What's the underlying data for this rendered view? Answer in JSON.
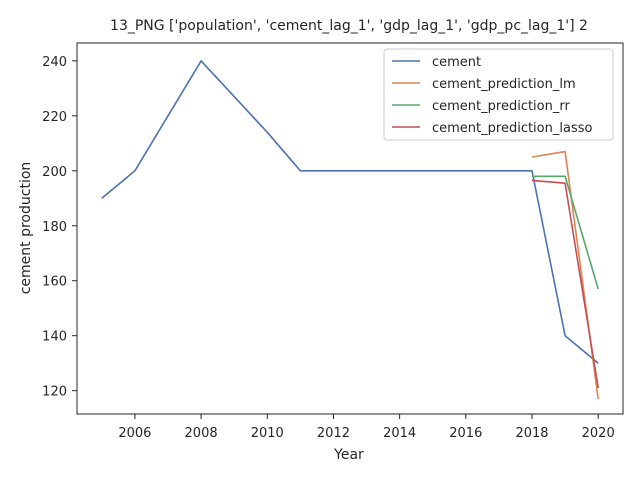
{
  "chart_data": {
    "type": "line",
    "title": "13_PNG ['population', 'cement_lag_1', 'gdp_lag_1', 'gdp_pc_lag_1'] 2",
    "xlabel": "Year",
    "ylabel": "cement production",
    "xlim": [
      2004.25,
      2020.75
    ],
    "ylim": [
      111.5,
      246.5
    ],
    "xticks": [
      2006,
      2008,
      2010,
      2012,
      2014,
      2016,
      2018,
      2020
    ],
    "yticks": [
      120,
      140,
      160,
      180,
      200,
      220,
      240
    ],
    "grid": false,
    "legend_position": "top-right",
    "series": [
      {
        "name": "cement",
        "color": "#4c72b0",
        "x": [
          2005,
          2006,
          2008,
          2009,
          2010,
          2011,
          2012,
          2013,
          2014,
          2015,
          2016,
          2017,
          2018,
          2019,
          2020
        ],
        "y": [
          190,
          200,
          240,
          227,
          214,
          200,
          200,
          200,
          200,
          200,
          200,
          200,
          200,
          140,
          130
        ]
      },
      {
        "name": "cement_prediction_lm",
        "color": "#dd8452",
        "x": [
          2018,
          2019,
          2020
        ],
        "y": [
          205,
          207,
          117
        ]
      },
      {
        "name": "cement_prediction_rr",
        "color": "#55a868",
        "x": [
          2018,
          2019,
          2020
        ],
        "y": [
          198,
          198,
          157
        ]
      },
      {
        "name": "cement_prediction_lasso",
        "color": "#c44e52",
        "x": [
          2018,
          2019,
          2020
        ],
        "y": [
          196.5,
          195.5,
          121
        ]
      }
    ]
  }
}
